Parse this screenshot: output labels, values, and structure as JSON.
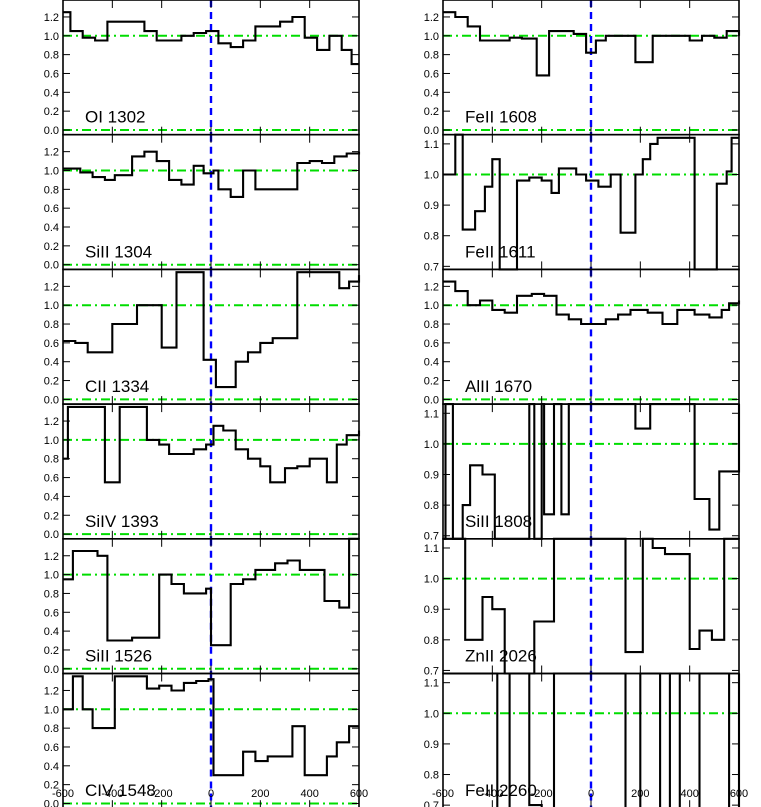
{
  "chart_data": {
    "type": "line",
    "xlim": [
      -600,
      600
    ],
    "x_ticks": [
      -600,
      -400,
      -200,
      0,
      200,
      400,
      600
    ],
    "x_tick_labels": [
      "-600",
      "-400",
      "-200",
      "0",
      "200",
      "400",
      "600"
    ],
    "colors": {
      "profile": "#000000",
      "zero_velocity_line": "#0000ff",
      "reference_lines": "#00dd00",
      "axes": "#000000"
    },
    "grid": false,
    "panels": [
      {
        "label": "OI 1302",
        "column": "left",
        "ylim": [
          -0.05,
          1.38
        ],
        "yticks": [
          0.0,
          0.2,
          0.4,
          0.6,
          0.8,
          1.0,
          1.2
        ],
        "yticklabels": [
          "0.0",
          "0.2",
          "0.4",
          "0.6",
          "0.8",
          "1.0",
          "1.2"
        ],
        "reference_lines": [
          0.0,
          1.0
        ],
        "x": [
          -600,
          -570,
          -520,
          -470,
          -420,
          -370,
          -320,
          -270,
          -220,
          -170,
          -120,
          -70,
          -20,
          30,
          80,
          130,
          180,
          230,
          280,
          330,
          380,
          430,
          480,
          530,
          570,
          600
        ],
        "y": [
          1.25,
          1.05,
          0.98,
          0.95,
          1.15,
          1.15,
          1.15,
          1.05,
          0.95,
          0.95,
          1.0,
          1.03,
          1.05,
          0.92,
          0.88,
          0.95,
          1.1,
          1.1,
          1.15,
          1.2,
          0.98,
          0.85,
          1.0,
          0.85,
          0.7,
          0.7
        ]
      },
      {
        "label": "SiII 1304",
        "column": "left",
        "ylim": [
          -0.05,
          1.38
        ],
        "yticks": [
          0.0,
          0.2,
          0.4,
          0.6,
          0.8,
          1.0,
          1.2
        ],
        "yticklabels": [
          "0.0",
          "0.2",
          "0.4",
          "0.6",
          "0.8",
          "1.0",
          "1.2"
        ],
        "reference_lines": [
          0.0,
          1.0
        ],
        "x": [
          -600,
          -530,
          -480,
          -430,
          -390,
          -320,
          -270,
          -220,
          -170,
          -120,
          -70,
          -30,
          10,
          30,
          80,
          130,
          180,
          250,
          300,
          350,
          400,
          450,
          500,
          550,
          600
        ],
        "y": [
          1.02,
          0.98,
          0.93,
          0.9,
          0.95,
          1.15,
          1.2,
          1.1,
          0.9,
          0.85,
          1.05,
          0.97,
          1.0,
          0.8,
          0.72,
          1.0,
          0.8,
          0.8,
          0.8,
          1.08,
          1.1,
          1.08,
          1.15,
          1.18,
          1.2
        ]
      },
      {
        "label": "CII 1334",
        "column": "left",
        "ylim": [
          -0.05,
          1.38
        ],
        "yticks": [
          0.0,
          0.2,
          0.4,
          0.6,
          0.8,
          1.0,
          1.2
        ],
        "yticklabels": [
          "0.0",
          "0.2",
          "0.4",
          "0.6",
          "0.8",
          "1.0",
          "1.2"
        ],
        "reference_lines": [
          0.0,
          1.0
        ],
        "x": [
          -600,
          -550,
          -500,
          -450,
          -400,
          -350,
          -300,
          -260,
          -200,
          -160,
          -140,
          -90,
          -50,
          -30,
          20,
          80,
          100,
          150,
          200,
          250,
          300,
          350,
          410,
          470,
          520,
          560,
          600
        ],
        "y": [
          0.62,
          0.6,
          0.5,
          0.5,
          0.8,
          0.8,
          1.0,
          1.0,
          0.55,
          0.55,
          1.35,
          1.35,
          1.35,
          0.42,
          0.13,
          0.13,
          0.4,
          0.5,
          0.6,
          0.65,
          0.65,
          1.35,
          1.35,
          1.35,
          1.18,
          1.25,
          1.32
        ]
      },
      {
        "label": "SiIV 1393",
        "column": "left",
        "ylim": [
          -0.05,
          1.38
        ],
        "yticks": [
          0.0,
          0.2,
          0.4,
          0.6,
          0.8,
          1.0,
          1.2
        ],
        "yticklabels": [
          "0.0",
          "0.2",
          "0.4",
          "0.6",
          "0.8",
          "1.0",
          "1.2"
        ],
        "reference_lines": [
          0.0,
          1.0
        ],
        "x": [
          -600,
          -580,
          -540,
          -490,
          -430,
          -370,
          -310,
          -260,
          -210,
          -170,
          -120,
          -70,
          -20,
          10,
          50,
          100,
          150,
          200,
          240,
          300,
          350,
          400,
          470,
          510,
          550,
          600
        ],
        "y": [
          0.8,
          1.35,
          1.35,
          1.35,
          0.55,
          1.35,
          1.35,
          1.0,
          0.95,
          0.85,
          0.85,
          0.9,
          0.95,
          1.15,
          1.1,
          0.9,
          0.8,
          0.72,
          0.55,
          0.7,
          0.72,
          0.8,
          0.55,
          0.95,
          1.05,
          1.1
        ]
      },
      {
        "label": "SiII 1526",
        "column": "left",
        "ylim": [
          -0.05,
          1.38
        ],
        "yticks": [
          0.0,
          0.2,
          0.4,
          0.6,
          0.8,
          1.0,
          1.2
        ],
        "yticklabels": [
          "0.0",
          "0.2",
          "0.4",
          "0.6",
          "0.8",
          "1.0",
          "1.2"
        ],
        "reference_lines": [
          0.0,
          1.0
        ],
        "x": [
          -600,
          -560,
          -500,
          -460,
          -420,
          -380,
          -320,
          -260,
          -210,
          -160,
          -110,
          -70,
          -20,
          0,
          30,
          80,
          130,
          180,
          230,
          260,
          310,
          360,
          410,
          460,
          520,
          560,
          600
        ],
        "y": [
          0.95,
          1.25,
          1.25,
          1.2,
          0.3,
          0.3,
          0.33,
          0.33,
          1.0,
          0.9,
          0.8,
          0.8,
          0.85,
          0.25,
          0.25,
          0.9,
          0.95,
          1.05,
          1.05,
          1.12,
          1.15,
          1.05,
          1.05,
          0.72,
          0.65,
          1.38,
          1.38
        ]
      },
      {
        "label": "CIV 1548",
        "column": "left",
        "ylim": [
          -0.05,
          1.38
        ],
        "yticks": [
          0.0,
          0.2,
          0.4,
          0.6,
          0.8,
          1.0,
          1.2
        ],
        "yticklabels": [
          "0.0",
          "0.2",
          "0.4",
          "0.6",
          "0.8",
          "1.0",
          "1.2"
        ],
        "reference_lines": [
          0.0,
          1.0
        ],
        "x": [
          -600,
          -560,
          -520,
          -480,
          -440,
          -390,
          -310,
          -260,
          -210,
          -160,
          -110,
          -60,
          -10,
          10,
          30,
          80,
          130,
          180,
          230,
          280,
          330,
          380,
          430,
          470,
          510,
          560,
          600
        ],
        "y": [
          1.0,
          1.35,
          1.0,
          0.8,
          0.8,
          1.35,
          1.35,
          1.22,
          1.25,
          1.2,
          1.28,
          1.3,
          1.32,
          0.3,
          0.3,
          0.3,
          0.55,
          0.45,
          0.5,
          0.5,
          0.82,
          0.3,
          0.3,
          0.5,
          0.65,
          0.82,
          0.82
        ]
      },
      {
        "label": "FeII 1608",
        "column": "right",
        "ylim": [
          -0.05,
          1.38
        ],
        "yticks": [
          0.0,
          0.2,
          0.4,
          0.6,
          0.8,
          1.0,
          1.2
        ],
        "yticklabels": [
          "0.0",
          "0.2",
          "0.4",
          "0.6",
          "0.8",
          "1.0",
          "1.2"
        ],
        "reference_lines": [
          0.0,
          1.0
        ],
        "x": [
          -600,
          -550,
          -500,
          -450,
          -380,
          -330,
          -280,
          -220,
          -170,
          -120,
          -70,
          -20,
          20,
          60,
          120,
          180,
          250,
          300,
          350,
          400,
          450,
          500,
          550,
          600
        ],
        "y": [
          1.25,
          1.2,
          1.1,
          0.95,
          0.95,
          0.98,
          0.97,
          0.58,
          1.05,
          1.05,
          1.02,
          0.82,
          0.95,
          1.0,
          1.0,
          0.72,
          1.0,
          1.0,
          1.0,
          0.95,
          1.0,
          0.98,
          1.05,
          1.0
        ]
      },
      {
        "label": "FeII 1611",
        "column": "right",
        "ylim": [
          0.69,
          1.13
        ],
        "yticks": [
          0.7,
          0.8,
          0.9,
          1.0,
          1.1
        ],
        "yticklabels": [
          "0.7",
          "0.8",
          "0.9",
          "1.0",
          "1.1"
        ],
        "reference_lines": [
          1.0
        ],
        "x": [
          -600,
          -550,
          -520,
          -470,
          -430,
          -400,
          -370,
          -340,
          -300,
          -250,
          -200,
          -160,
          -130,
          -100,
          -60,
          -20,
          30,
          80,
          120,
          180,
          210,
          240,
          270,
          320,
          360,
          420,
          480,
          510,
          550,
          570,
          600
        ],
        "y": [
          1.0,
          1.13,
          0.82,
          0.88,
          0.96,
          1.05,
          0.69,
          0.68,
          0.98,
          0.99,
          0.98,
          0.94,
          1.02,
          1.02,
          1.0,
          0.98,
          0.96,
          1.0,
          0.81,
          1.0,
          1.05,
          1.1,
          1.12,
          1.12,
          1.12,
          0.69,
          0.69,
          0.97,
          1.01,
          1.12,
          1.12
        ]
      },
      {
        "label": "AlII 1670",
        "column": "right",
        "ylim": [
          -0.05,
          1.38
        ],
        "yticks": [
          0.0,
          0.2,
          0.4,
          0.6,
          0.8,
          1.0,
          1.2
        ],
        "yticklabels": [
          "0.0",
          "0.2",
          "0.4",
          "0.6",
          "0.8",
          "1.0",
          "1.2"
        ],
        "reference_lines": [
          0.0,
          1.0
        ],
        "x": [
          -600,
          -550,
          -500,
          -450,
          -400,
          -350,
          -300,
          -240,
          -190,
          -140,
          -90,
          -40,
          10,
          60,
          110,
          160,
          230,
          290,
          350,
          420,
          480,
          530,
          560,
          600
        ],
        "y": [
          1.25,
          1.15,
          1.0,
          1.05,
          0.95,
          0.92,
          1.1,
          1.12,
          1.1,
          0.9,
          0.85,
          0.8,
          0.8,
          0.85,
          0.9,
          0.95,
          0.92,
          0.8,
          0.95,
          0.9,
          0.87,
          0.95,
          1.02,
          1.05
        ]
      },
      {
        "label": "SiII 1808",
        "column": "right",
        "ylim": [
          0.69,
          1.13
        ],
        "yticks": [
          0.7,
          0.8,
          0.9,
          1.0,
          1.1
        ],
        "yticklabels": [
          "0.7",
          "0.8",
          "0.9",
          "1.0",
          "1.1"
        ],
        "reference_lines": [
          1.0
        ],
        "x": [
          -600,
          -590,
          -560,
          -520,
          -490,
          -440,
          -390,
          -330,
          -290,
          -250,
          -230,
          -200,
          -190,
          -150,
          -120,
          -90,
          -40,
          0,
          50,
          180,
          240,
          290,
          300,
          370,
          420,
          480,
          520,
          560,
          600
        ],
        "y": [
          0.69,
          1.13,
          0.69,
          0.8,
          0.93,
          0.9,
          0.69,
          0.69,
          0.69,
          1.13,
          0.69,
          1.13,
          0.77,
          1.13,
          0.77,
          1.13,
          1.13,
          1.13,
          1.13,
          1.05,
          1.13,
          1.13,
          1.13,
          1.13,
          0.82,
          0.72,
          0.91,
          0.91,
          1.13
        ]
      },
      {
        "label": "ZnII 2026",
        "column": "right",
        "ylim": [
          0.69,
          1.13
        ],
        "yticks": [
          0.7,
          0.8,
          0.9,
          1.0,
          1.1
        ],
        "yticklabels": [
          "0.7",
          "0.8",
          "0.9",
          "1.0",
          "1.1"
        ],
        "reference_lines": [
          1.0
        ],
        "x": [
          -600,
          -570,
          -510,
          -480,
          -440,
          -400,
          -350,
          -260,
          -230,
          -200,
          -150,
          -100,
          -50,
          0,
          50,
          140,
          210,
          250,
          300,
          350,
          400,
          440,
          490,
          540,
          580,
          600
        ],
        "y": [
          1.13,
          1.13,
          0.8,
          0.8,
          0.94,
          0.9,
          0.68,
          0.68,
          0.86,
          0.86,
          1.13,
          1.13,
          1.13,
          1.13,
          1.13,
          0.76,
          1.13,
          1.1,
          1.08,
          1.08,
          0.77,
          0.83,
          0.8,
          1.13,
          1.13,
          1.13
        ]
      },
      {
        "label": "FeII 2260",
        "column": "right",
        "ylim": [
          0.69,
          1.13
        ],
        "yticks": [
          0.7,
          0.8,
          0.9,
          1.0,
          1.1
        ],
        "yticklabels": [
          "0.7",
          "0.8",
          "0.9",
          "1.0",
          "1.1"
        ],
        "reference_lines": [
          1.0
        ],
        "x": [
          -600,
          -480,
          -380,
          -330,
          -250,
          -240,
          -200,
          -150,
          -100,
          0,
          100,
          140,
          200,
          280,
          320,
          360,
          440,
          500,
          560,
          600
        ],
        "y": [
          1.13,
          1.13,
          0.69,
          1.13,
          0.7,
          0.7,
          0.69,
          1.13,
          1.13,
          1.13,
          1.13,
          0.69,
          1.13,
          0.69,
          1.13,
          0.69,
          1.13,
          1.13,
          0.69,
          1.13
        ]
      }
    ]
  }
}
